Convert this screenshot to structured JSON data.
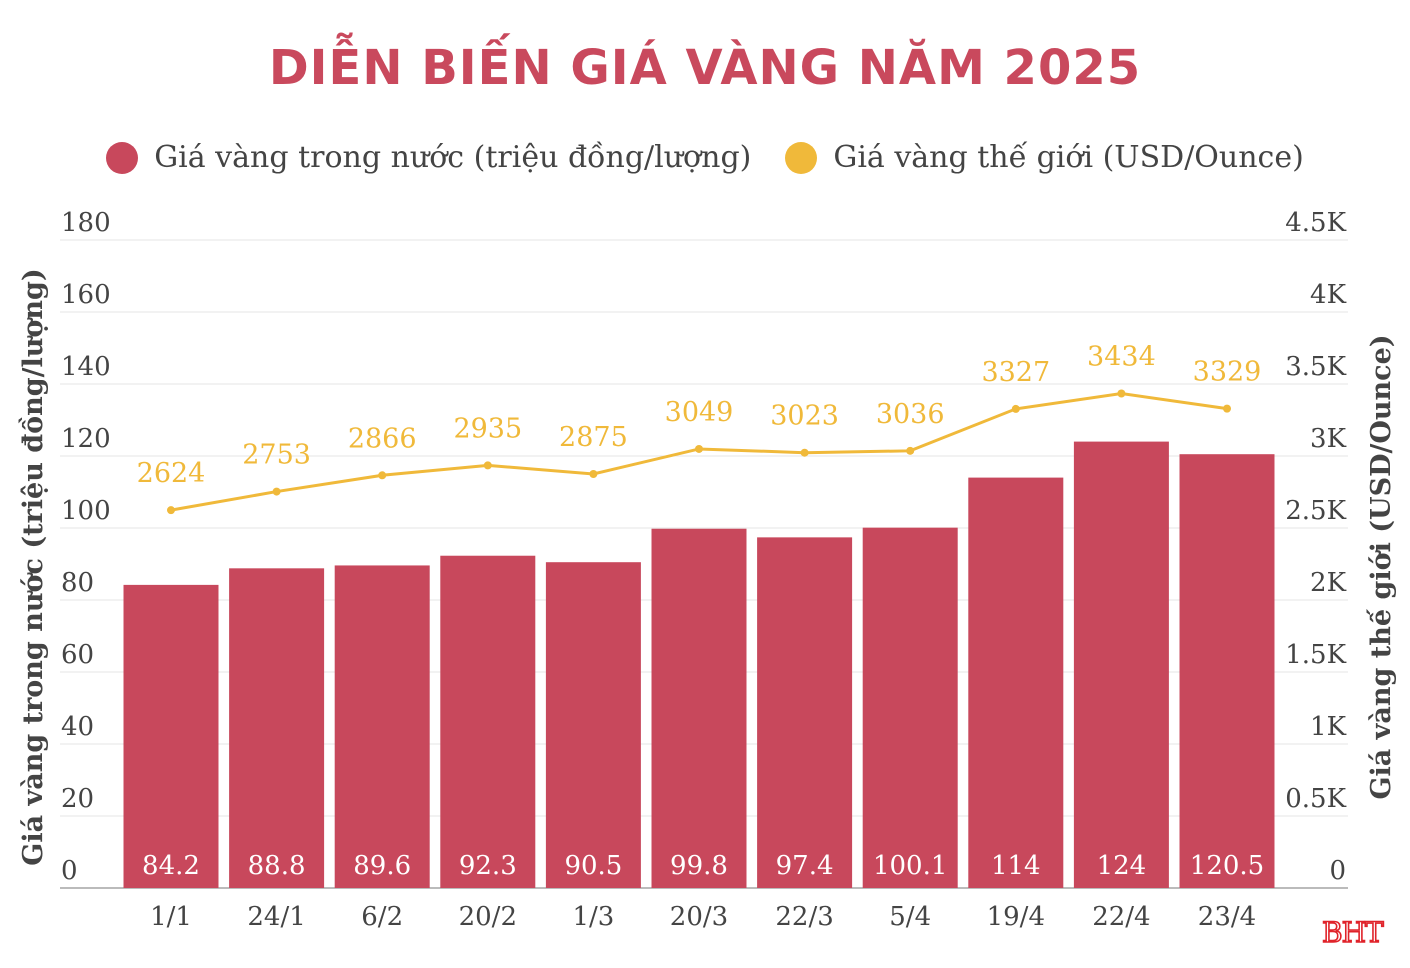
{
  "chart_data": {
    "type": "bar+line",
    "title": "DIỄN BIẾN GIÁ VÀNG NĂM 2025",
    "categories": [
      "1/1",
      "24/1",
      "6/2",
      "20/2",
      "1/3",
      "20/3",
      "22/3",
      "5/4",
      "19/4",
      "22/4",
      "23/4"
    ],
    "series": [
      {
        "name": "Giá vàng trong nước (triệu đồng/lượng)",
        "type": "bar",
        "axis": "left",
        "color": "#c8485c",
        "values": [
          84.2,
          88.8,
          89.6,
          92.3,
          90.5,
          99.8,
          97.4,
          100.1,
          114,
          124,
          120.5
        ]
      },
      {
        "name": "Giá vàng thế giới (USD/Ounce)",
        "type": "line",
        "axis": "right",
        "color": "#f0b93a",
        "values": [
          2624,
          2753,
          2866,
          2935,
          2875,
          3049,
          3023,
          3036,
          3327,
          3434,
          3329
        ]
      }
    ],
    "ylabel_left": "Giá vàng trong nước (triệu đồng/lượng)",
    "ylabel_right": "Giá vàng thế giới (USD/Ounce)",
    "ylim_left": [
      0,
      180
    ],
    "ylim_right": [
      0,
      4500
    ],
    "yticks_left": [
      "0",
      "20",
      "40",
      "60",
      "80",
      "100",
      "120",
      "140",
      "160",
      "180"
    ],
    "yticks_right": [
      "0",
      "0.5K",
      "1K",
      "1.5K",
      "2K",
      "2.5K",
      "3K",
      "3.5K",
      "4K",
      "4.5K"
    ],
    "grid": true,
    "legend": "top"
  },
  "logo": "BHT"
}
